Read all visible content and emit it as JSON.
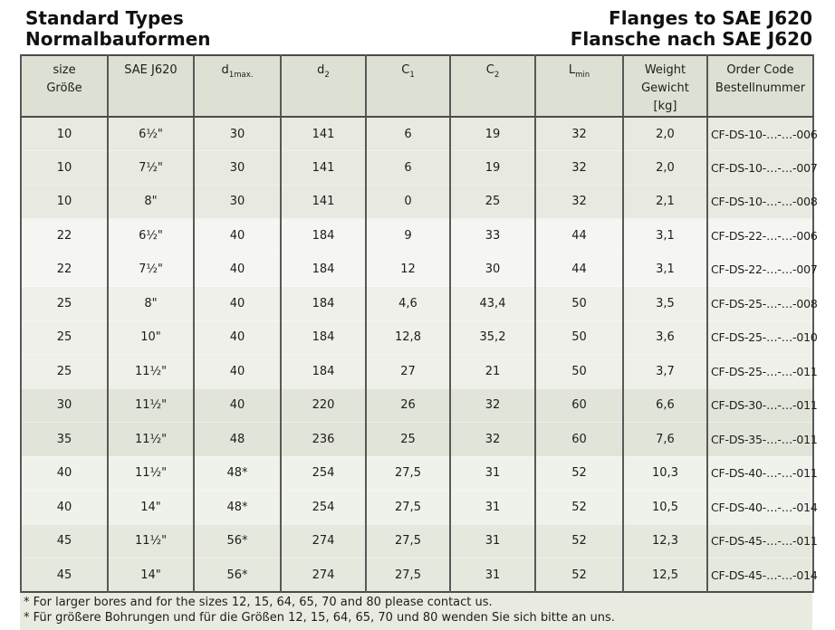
{
  "titles": {
    "left_line1": "Standard Types",
    "left_line2": "Normalbauformen",
    "right_line1": "Flanges to SAE J620",
    "right_line2": "Flansche nach SAE J620"
  },
  "table": {
    "columns": [
      {
        "key": "size",
        "width": 96,
        "lines": [
          "size",
          "Größe"
        ]
      },
      {
        "key": "sae-j620",
        "width": 95,
        "lines": [
          "SAE J620"
        ]
      },
      {
        "key": "d1max",
        "width": 96,
        "base": "d",
        "sub": "1max."
      },
      {
        "key": "d2",
        "width": 94,
        "base": "d",
        "sub": "2"
      },
      {
        "key": "c1",
        "width": 93,
        "base": "C",
        "sub": "1"
      },
      {
        "key": "c2",
        "width": 94,
        "base": "C",
        "sub": "2"
      },
      {
        "key": "lmin",
        "width": 97,
        "base": "L",
        "sub": "min"
      },
      {
        "key": "weight",
        "width": 93,
        "lines": [
          "Weight",
          "Gewicht",
          "[kg]"
        ]
      },
      {
        "key": "order-code",
        "width": 117,
        "lines": [
          "Order Code",
          "Bestellnummer"
        ]
      }
    ],
    "rows": [
      {
        "bg": "#e8eae1",
        "cells": [
          "10",
          "6½\"",
          "30",
          "141",
          "6",
          "19",
          "32",
          "2,0",
          "CF-DS-10-…-…-006"
        ]
      },
      {
        "bg": "#e8eae1",
        "cells": [
          "10",
          "7½\"",
          "30",
          "141",
          "6",
          "19",
          "32",
          "2,0",
          "CF-DS-10-…-…-007"
        ]
      },
      {
        "bg": "#e8eae1",
        "cells": [
          "10",
          "8\"",
          "30",
          "141",
          "0",
          "25",
          "32",
          "2,1",
          "CF-DS-10-…-…-008"
        ]
      },
      {
        "bg": "#f5f6f2",
        "cells": [
          "22",
          "6½\"",
          "40",
          "184",
          "9",
          "33",
          "44",
          "3,1",
          "CF-DS-22-…-…-006"
        ]
      },
      {
        "bg": "#f5f6f2",
        "cells": [
          "22",
          "7½\"",
          "40",
          "184",
          "12",
          "30",
          "44",
          "3,1",
          "CF-DS-22-…-…-007"
        ]
      },
      {
        "bg": "#eef0e9",
        "cells": [
          "25",
          "8\"",
          "40",
          "184",
          "4,6",
          "43,4",
          "50",
          "3,5",
          "CF-DS-25-…-…-008"
        ]
      },
      {
        "bg": "#eef0e9",
        "cells": [
          "25",
          "10\"",
          "40",
          "184",
          "12,8",
          "35,2",
          "50",
          "3,6",
          "CF-DS-25-…-…-010"
        ]
      },
      {
        "bg": "#eef0e9",
        "cells": [
          "25",
          "11½\"",
          "40",
          "184",
          "27",
          "21",
          "50",
          "3,7",
          "CF-DS-25-…-…-011"
        ]
      },
      {
        "bg": "#e1e4d8",
        "cells": [
          "30",
          "11½\"",
          "40",
          "220",
          "26",
          "32",
          "60",
          "6,6",
          "CF-DS-30-…-…-011"
        ]
      },
      {
        "bg": "#e1e4d8",
        "cells": [
          "35",
          "11½\"",
          "48",
          "236",
          "25",
          "32",
          "60",
          "7,6",
          "CF-DS-35-…-…-011"
        ]
      },
      {
        "bg": "#eff1eb",
        "cells": [
          "40",
          "11½\"",
          "48*",
          "254",
          "27,5",
          "31",
          "52",
          "10,3",
          "CF-DS-40-…-…-011"
        ]
      },
      {
        "bg": "#eff1eb",
        "cells": [
          "40",
          "14\"",
          "48*",
          "254",
          "27,5",
          "31",
          "52",
          "10,5",
          "CF-DS-40-…-…-014"
        ]
      },
      {
        "bg": "#e5e8dd",
        "cells": [
          "45",
          "11½\"",
          "56*",
          "274",
          "27,5",
          "31",
          "52",
          "12,3",
          "CF-DS-45-…-…-011"
        ]
      },
      {
        "bg": "#e5e8dd",
        "cells": [
          "45",
          "14\"",
          "56*",
          "274",
          "27,5",
          "31",
          "52",
          "12,5",
          "CF-DS-45-…-…-014"
        ]
      }
    ]
  },
  "footnotes": [
    "* For larger bores and for the sizes 12, 15, 64, 65, 70 and 80 please contact us.",
    "* Für größere Bohrungen und für die Größen 12, 15, 64, 65, 70 und 80 wenden Sie sich bitte an uns."
  ],
  "colors": {
    "header_bg": "#dde1d3",
    "footer_bg": "#e9ebe1",
    "border": "#4b4b4b",
    "grid": "#585858",
    "text": "#1d1d1d",
    "band_dark": "#e8eae1",
    "band_light": "#f5f6f2"
  }
}
